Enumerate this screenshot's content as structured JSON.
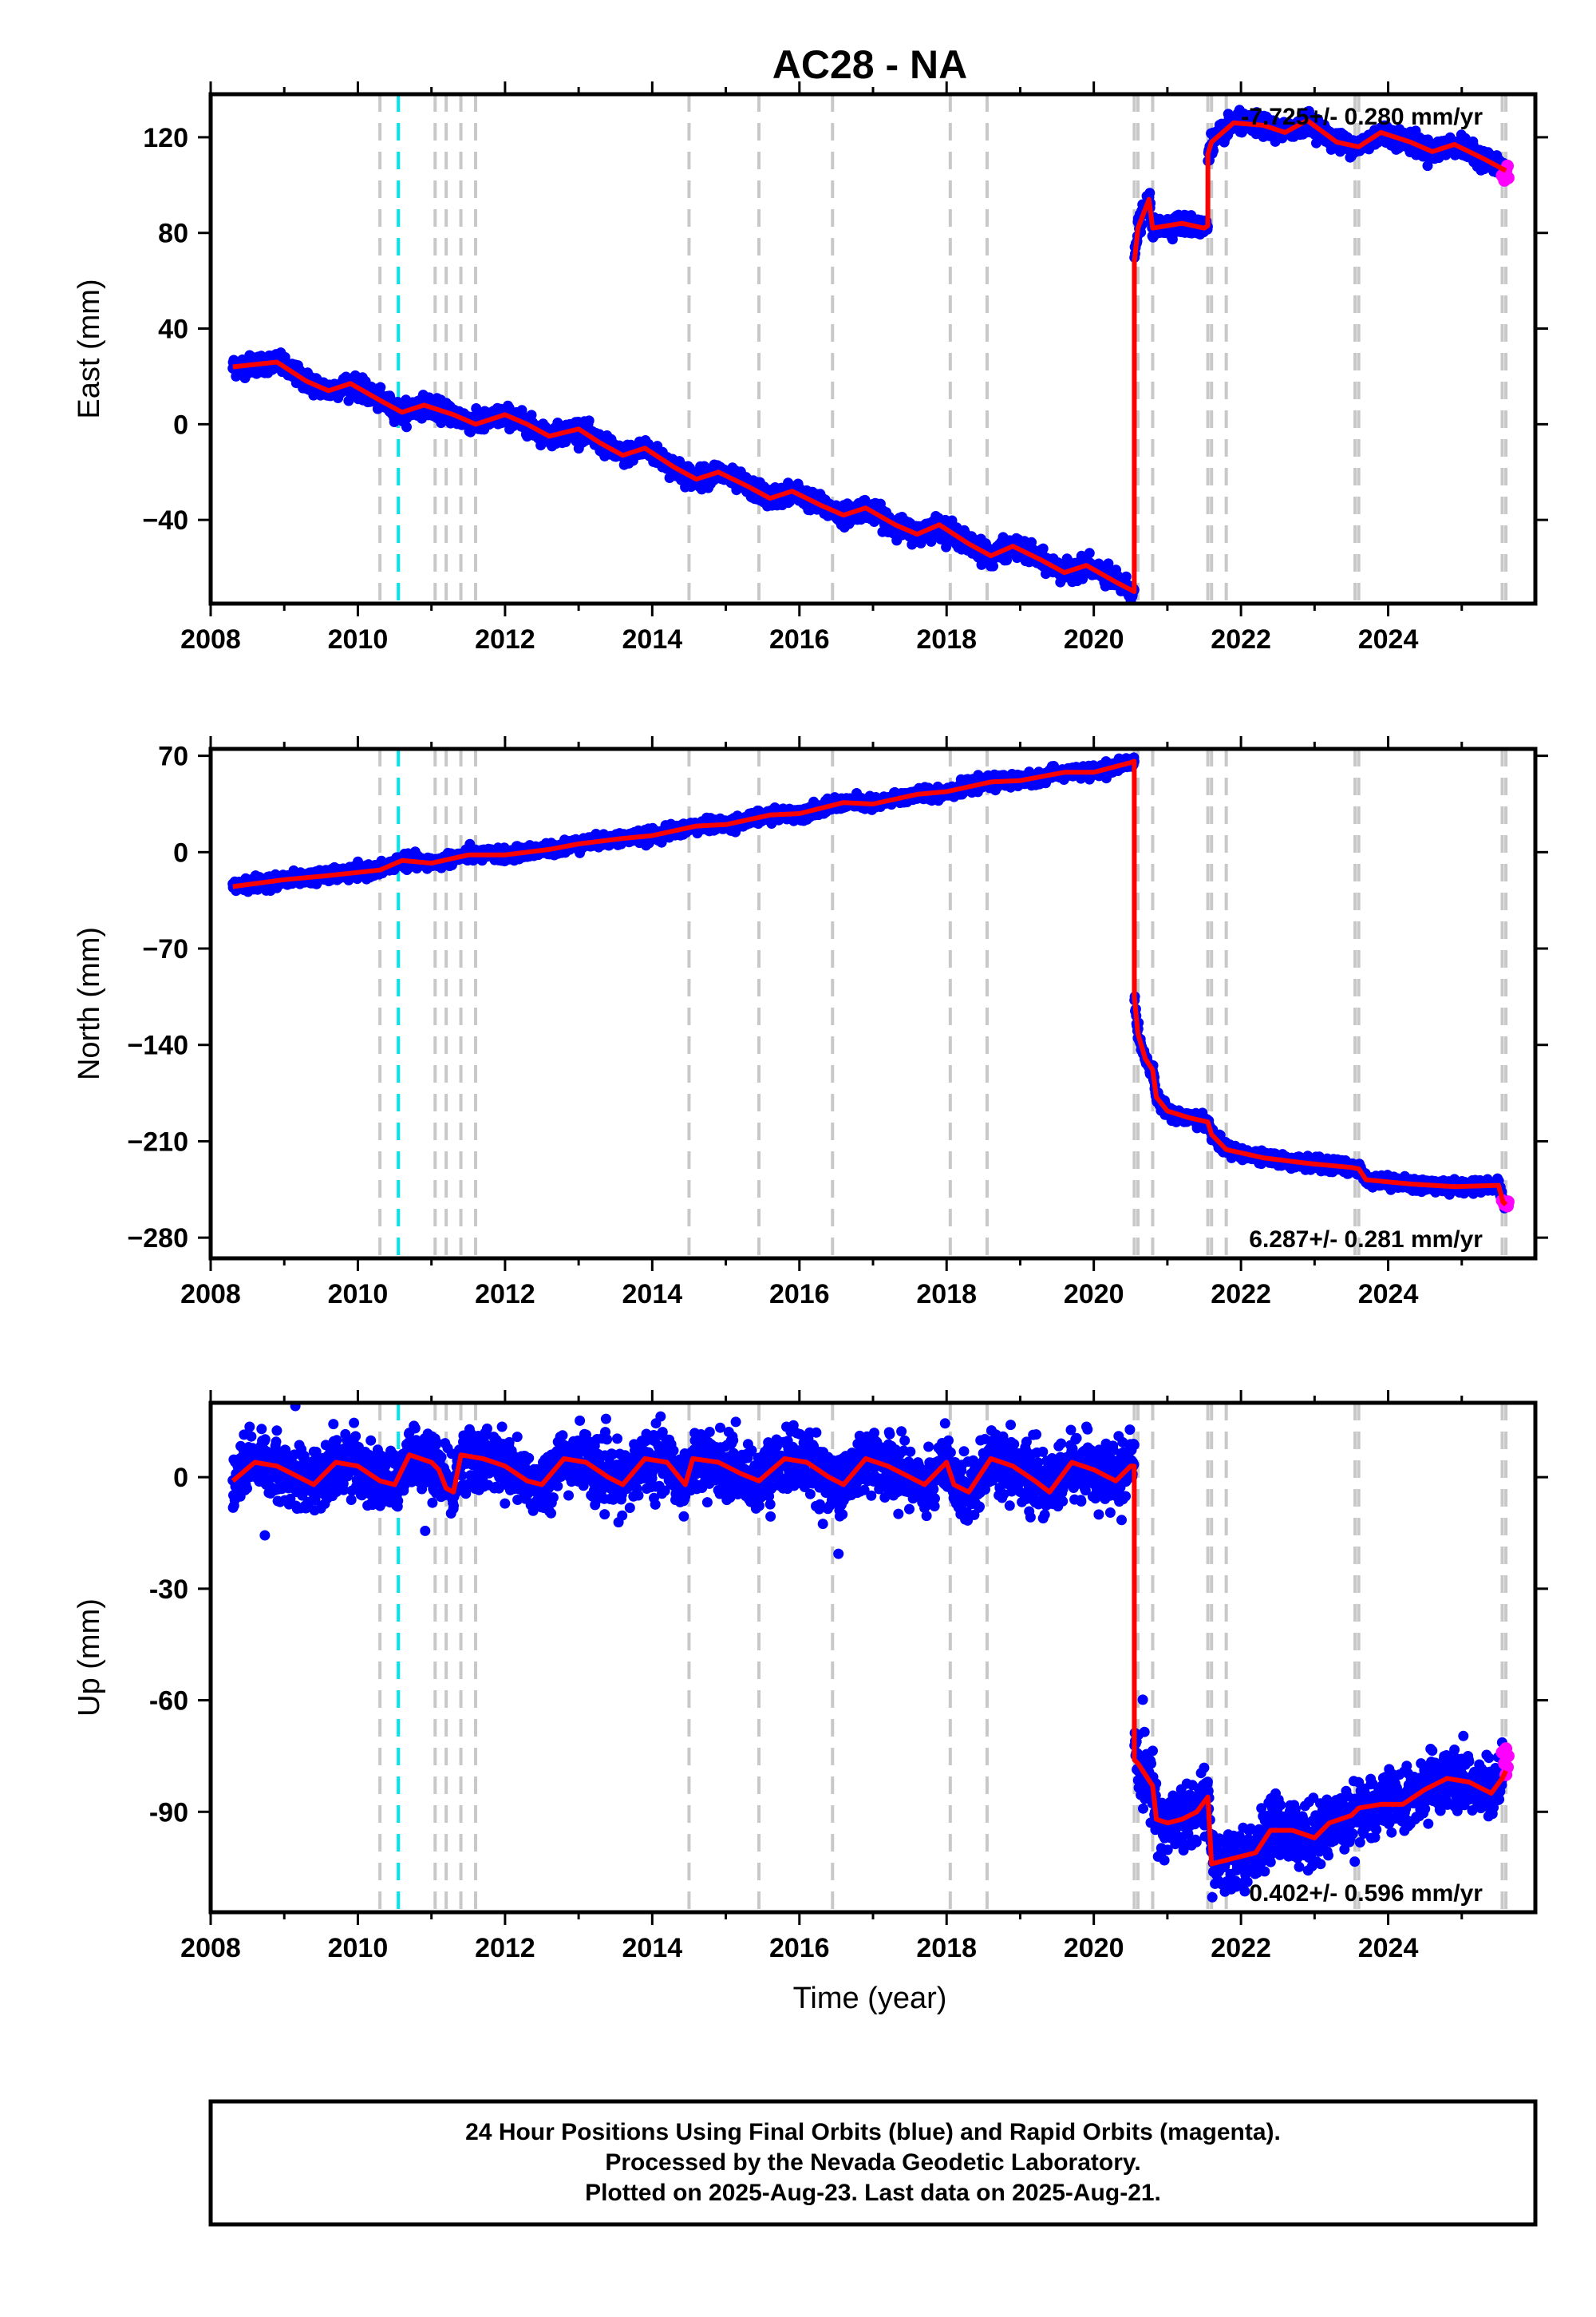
{
  "chart_data": {
    "title": "AC28 - NA",
    "type": "scatter",
    "colors": {
      "final_points": "#0000ff",
      "rapid_points": "#ff00ff",
      "model_line": "#ff0000",
      "event_line_gray": "#c8c8c8",
      "event_line_cyan": "#00e5ee"
    },
    "xlabel": "Time (year)",
    "xlim": [
      2008,
      2026.0
    ],
    "xticks": [
      "2008",
      "2010",
      "2012",
      "2014",
      "2016",
      "2018",
      "2020",
      "2022",
      "2024"
    ],
    "event_lines_gray": [
      2010.3,
      2011.05,
      2011.2,
      2011.4,
      2011.6,
      2014.5,
      2015.45,
      2016.45,
      2018.05,
      2018.55,
      2020.55,
      2020.6,
      2020.8,
      2021.55,
      2021.6,
      2021.8,
      2023.55,
      2023.6,
      2025.55,
      2025.6
    ],
    "event_lines_cyan": [
      2010.55
    ],
    "panels": [
      {
        "name": "east",
        "ylabel": "East (mm)",
        "ylim": [
          -75,
          138
        ],
        "yticks": [
          "120",
          "80",
          "40",
          "0",
          "−40"
        ],
        "ytick_values": [
          120,
          80,
          40,
          0,
          -40
        ],
        "rate_label": "-7.725+/- 0.280 mm/yr",
        "noise": 2.0,
        "model_points": [
          [
            2008.3,
            24
          ],
          [
            2008.9,
            26
          ],
          [
            2009.3,
            18
          ],
          [
            2009.6,
            14
          ],
          [
            2009.9,
            17
          ],
          [
            2010.3,
            10
          ],
          [
            2010.6,
            5
          ],
          [
            2010.9,
            8
          ],
          [
            2011.3,
            4
          ],
          [
            2011.6,
            0
          ],
          [
            2012.0,
            4
          ],
          [
            2012.3,
            0
          ],
          [
            2012.6,
            -5
          ],
          [
            2013.0,
            -2
          ],
          [
            2013.3,
            -8
          ],
          [
            2013.6,
            -13
          ],
          [
            2013.9,
            -10
          ],
          [
            2014.3,
            -18
          ],
          [
            2014.6,
            -23
          ],
          [
            2014.9,
            -20
          ],
          [
            2015.3,
            -26
          ],
          [
            2015.6,
            -31
          ],
          [
            2015.9,
            -28
          ],
          [
            2016.3,
            -34
          ],
          [
            2016.6,
            -38
          ],
          [
            2016.9,
            -35
          ],
          [
            2017.3,
            -42
          ],
          [
            2017.6,
            -46
          ],
          [
            2017.9,
            -42
          ],
          [
            2018.3,
            -50
          ],
          [
            2018.6,
            -55
          ],
          [
            2018.9,
            -51
          ],
          [
            2019.3,
            -57
          ],
          [
            2019.6,
            -62
          ],
          [
            2019.9,
            -59
          ],
          [
            2020.3,
            -66
          ],
          [
            2020.55,
            -70
          ],
          [
            2020.551,
            68
          ],
          [
            2020.6,
            82
          ],
          [
            2020.7,
            90
          ],
          [
            2020.75,
            94
          ],
          [
            2020.8,
            82
          ],
          [
            2021.2,
            84
          ],
          [
            2021.5,
            82
          ],
          [
            2021.55,
            83
          ],
          [
            2021.551,
            113
          ],
          [
            2021.6,
            118
          ],
          [
            2021.9,
            126
          ],
          [
            2022.3,
            125
          ],
          [
            2022.6,
            122
          ],
          [
            2022.9,
            127
          ],
          [
            2023.3,
            118
          ],
          [
            2023.6,
            116
          ],
          [
            2023.9,
            122
          ],
          [
            2024.3,
            118
          ],
          [
            2024.6,
            114
          ],
          [
            2024.9,
            117
          ],
          [
            2025.3,
            111
          ],
          [
            2025.6,
            106
          ]
        ],
        "rapid_points": [
          [
            2025.55,
            104
          ],
          [
            2025.58,
            102
          ],
          [
            2025.6,
            106
          ],
          [
            2025.62,
            108
          ],
          [
            2025.63,
            103
          ]
        ]
      },
      {
        "name": "north",
        "ylabel": "North (mm)",
        "ylim": [
          -295,
          75
        ],
        "yticks": [
          "70",
          "0",
          "−70",
          "−140",
          "−210",
          "−280"
        ],
        "ytick_values": [
          70,
          0,
          -70,
          -140,
          -210,
          -280
        ],
        "rate_label": "6.287+/- 0.281 mm/yr",
        "noise": 2.2,
        "model_points": [
          [
            2008.3,
            -25
          ],
          [
            2009.0,
            -20
          ],
          [
            2009.6,
            -17
          ],
          [
            2010.3,
            -13
          ],
          [
            2010.6,
            -6
          ],
          [
            2011.0,
            -8
          ],
          [
            2011.5,
            -2
          ],
          [
            2012.0,
            -2
          ],
          [
            2012.6,
            2
          ],
          [
            2013.0,
            6
          ],
          [
            2013.6,
            10
          ],
          [
            2014.0,
            12
          ],
          [
            2014.6,
            19
          ],
          [
            2015.0,
            20
          ],
          [
            2015.6,
            27
          ],
          [
            2016.0,
            28
          ],
          [
            2016.6,
            36
          ],
          [
            2017.0,
            35
          ],
          [
            2017.6,
            42
          ],
          [
            2018.0,
            44
          ],
          [
            2018.6,
            51
          ],
          [
            2019.0,
            52
          ],
          [
            2019.6,
            58
          ],
          [
            2020.0,
            58
          ],
          [
            2020.5,
            65
          ],
          [
            2020.55,
            66
          ],
          [
            2020.551,
            -105
          ],
          [
            2020.6,
            -132
          ],
          [
            2020.7,
            -150
          ],
          [
            2020.8,
            -158
          ],
          [
            2020.85,
            -178
          ],
          [
            2021.0,
            -188
          ],
          [
            2021.3,
            -193
          ],
          [
            2021.55,
            -196
          ],
          [
            2021.6,
            -205
          ],
          [
            2021.8,
            -216
          ],
          [
            2022.3,
            -222
          ],
          [
            2022.9,
            -226
          ],
          [
            2023.5,
            -229
          ],
          [
            2023.6,
            -230
          ],
          [
            2023.7,
            -238
          ],
          [
            2024.3,
            -241
          ],
          [
            2024.9,
            -243
          ],
          [
            2025.5,
            -242
          ],
          [
            2025.56,
            -254
          ],
          [
            2025.6,
            -256
          ]
        ],
        "rapid_points": [
          [
            2025.55,
            -253
          ],
          [
            2025.58,
            -256
          ],
          [
            2025.6,
            -255
          ],
          [
            2025.62,
            -257
          ],
          [
            2025.63,
            -254
          ]
        ]
      },
      {
        "name": "up",
        "ylabel": "Up (mm)",
        "ylim": [
          -117,
          20
        ],
        "yticks": [
          "0",
          "-30",
          "-60",
          "-90"
        ],
        "ytick_values": [
          0,
          -30,
          -60,
          -90
        ],
        "rate_label": "0.402+/- 0.596 mm/yr",
        "noise": 4.0,
        "model_points": [
          [
            2008.3,
            -1
          ],
          [
            2008.6,
            4
          ],
          [
            2008.9,
            3
          ],
          [
            2009.2,
            0
          ],
          [
            2009.4,
            -2
          ],
          [
            2009.7,
            4
          ],
          [
            2010.0,
            3
          ],
          [
            2010.3,
            -1
          ],
          [
            2010.5,
            -2
          ],
          [
            2010.7,
            6
          ],
          [
            2011.0,
            4
          ],
          [
            2011.1,
            2
          ],
          [
            2011.2,
            -3
          ],
          [
            2011.3,
            -4
          ],
          [
            2011.4,
            6
          ],
          [
            2011.7,
            5
          ],
          [
            2012.0,
            3
          ],
          [
            2012.3,
            -1
          ],
          [
            2012.5,
            -2
          ],
          [
            2012.8,
            5
          ],
          [
            2013.1,
            4
          ],
          [
            2013.4,
            0
          ],
          [
            2013.6,
            -2
          ],
          [
            2013.9,
            5
          ],
          [
            2014.2,
            4
          ],
          [
            2014.45,
            -2
          ],
          [
            2014.55,
            5
          ],
          [
            2014.9,
            4
          ],
          [
            2015.2,
            1
          ],
          [
            2015.45,
            -1
          ],
          [
            2015.8,
            5
          ],
          [
            2016.1,
            4
          ],
          [
            2016.4,
            0
          ],
          [
            2016.6,
            -2
          ],
          [
            2016.9,
            5
          ],
          [
            2017.2,
            3
          ],
          [
            2017.5,
            0
          ],
          [
            2017.7,
            -2
          ],
          [
            2018.0,
            4
          ],
          [
            2018.1,
            -2
          ],
          [
            2018.3,
            -4
          ],
          [
            2018.6,
            5
          ],
          [
            2018.9,
            3
          ],
          [
            2019.2,
            -1
          ],
          [
            2019.4,
            -4
          ],
          [
            2019.7,
            4
          ],
          [
            2020.0,
            2
          ],
          [
            2020.3,
            -1
          ],
          [
            2020.5,
            3
          ],
          [
            2020.55,
            3
          ],
          [
            2020.551,
            -76
          ],
          [
            2020.6,
            -77
          ],
          [
            2020.7,
            -80
          ],
          [
            2020.8,
            -83
          ],
          [
            2020.85,
            -92
          ],
          [
            2021.0,
            -93
          ],
          [
            2021.2,
            -92
          ],
          [
            2021.4,
            -90
          ],
          [
            2021.55,
            -86
          ],
          [
            2021.6,
            -104
          ],
          [
            2021.8,
            -103
          ],
          [
            2022.0,
            -102
          ],
          [
            2022.2,
            -101
          ],
          [
            2022.4,
            -95
          ],
          [
            2022.7,
            -95
          ],
          [
            2023.0,
            -97
          ],
          [
            2023.2,
            -93
          ],
          [
            2023.5,
            -91
          ],
          [
            2023.6,
            -89
          ],
          [
            2023.9,
            -88
          ],
          [
            2024.2,
            -88
          ],
          [
            2024.5,
            -84
          ],
          [
            2024.8,
            -81
          ],
          [
            2025.1,
            -82
          ],
          [
            2025.4,
            -85
          ],
          [
            2025.55,
            -81
          ],
          [
            2025.6,
            -79
          ]
        ],
        "rapid_points": [
          [
            2025.55,
            -74
          ],
          [
            2025.58,
            -77
          ],
          [
            2025.6,
            -73
          ],
          [
            2025.62,
            -78
          ],
          [
            2025.63,
            -75
          ],
          [
            2025.6,
            -80
          ]
        ]
      }
    ]
  },
  "footer": {
    "line1": "24 Hour Positions Using Final Orbits (blue) and Rapid Orbits (magenta).",
    "line2": "Processed by the Nevada Geodetic Laboratory.",
    "line3": "Plotted on 2025-Aug-23. Last data on 2025-Aug-21."
  }
}
